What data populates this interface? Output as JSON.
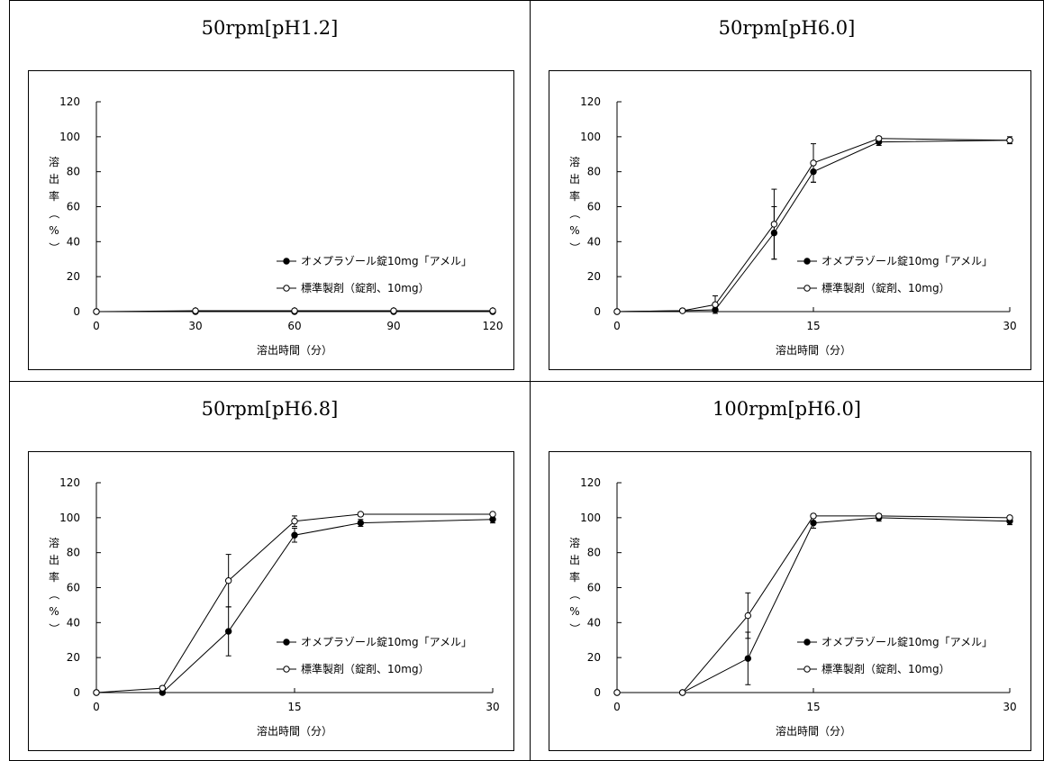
{
  "ylabel": "溶出率（％）",
  "ylabel_chars": [
    "溶",
    "出",
    "率",
    "（",
    "%",
    "）"
  ],
  "xlabel": "溶出時間（分）",
  "chart_data": [
    {
      "type": "line",
      "title": "50rpm[pH1.2]",
      "xlabel": "溶出時間（分）",
      "ylabel": "溶出率（％）",
      "xlim": [
        0,
        120
      ],
      "ylim": [
        0,
        120
      ],
      "xticks": [
        0,
        30,
        60,
        90,
        120
      ],
      "yticks": [
        0,
        20,
        40,
        60,
        80,
        100,
        120
      ],
      "grid": false,
      "legend_position": "right",
      "series": [
        {
          "name": "オメプラゾール錠10mg「アメル」",
          "marker": "filled-circle",
          "x": [
            0,
            30,
            60,
            90,
            120
          ],
          "y": [
            0,
            0,
            0,
            0,
            0
          ],
          "err": [
            0,
            0,
            0,
            0,
            0
          ]
        },
        {
          "name": "標準製剤（錠剤、10mg）",
          "marker": "open-circle",
          "x": [
            0,
            30,
            60,
            90,
            120
          ],
          "y": [
            0,
            0.5,
            0.5,
            0.5,
            0.5
          ],
          "err": [
            0,
            0,
            0,
            0,
            0
          ]
        }
      ]
    },
    {
      "type": "line",
      "title": "50rpm[pH6.0]",
      "xlabel": "溶出時間（分）",
      "ylabel": "溶出率（％）",
      "xlim": [
        0,
        30
      ],
      "ylim": [
        0,
        120
      ],
      "xticks": [
        0,
        15,
        30
      ],
      "yticks": [
        0,
        20,
        40,
        60,
        80,
        100,
        120
      ],
      "grid": false,
      "legend_position": "right",
      "series": [
        {
          "name": "オメプラゾール錠10mg「アメル」",
          "marker": "filled-circle",
          "x": [
            0,
            5,
            7.5,
            12,
            15,
            20,
            30
          ],
          "y": [
            0,
            0.5,
            1,
            45,
            80,
            97,
            98
          ],
          "err": [
            0,
            0,
            1,
            15,
            6,
            2,
            1
          ]
        },
        {
          "name": "標準製剤（錠剤、10mg）",
          "marker": "open-circle",
          "x": [
            0,
            5,
            7.5,
            12,
            15,
            20,
            30
          ],
          "y": [
            0,
            0.5,
            4,
            50,
            85,
            99,
            98
          ],
          "err": [
            0,
            0,
            5,
            20,
            11,
            1,
            2
          ]
        }
      ]
    },
    {
      "type": "line",
      "title": "50rpm[pH6.8]",
      "xlabel": "溶出時間（分）",
      "ylabel": "溶出率（％）",
      "xlim": [
        0,
        30
      ],
      "ylim": [
        0,
        120
      ],
      "xticks": [
        0,
        15,
        30
      ],
      "yticks": [
        0,
        20,
        40,
        60,
        80,
        100,
        120
      ],
      "grid": false,
      "legend_position": "right",
      "series": [
        {
          "name": "オメプラゾール錠10mg「アメル」",
          "marker": "filled-circle",
          "x": [
            0,
            5,
            10,
            15,
            20,
            30
          ],
          "y": [
            0,
            0,
            35,
            90,
            97,
            99
          ],
          "err": [
            0,
            1,
            14,
            4,
            2,
            2
          ]
        },
        {
          "name": "標準製剤（錠剤、10mg）",
          "marker": "open-circle",
          "x": [
            0,
            5,
            10,
            15,
            20,
            30
          ],
          "y": [
            0,
            2.5,
            64,
            98,
            102,
            102
          ],
          "err": [
            0,
            1,
            15,
            3,
            1,
            1
          ]
        }
      ]
    },
    {
      "type": "line",
      "title": "100rpm[pH6.0]",
      "xlabel": "溶出時間（分）",
      "ylabel": "溶出率（％）",
      "xlim": [
        0,
        30
      ],
      "ylim": [
        0,
        120
      ],
      "xticks": [
        0,
        15,
        30
      ],
      "yticks": [
        0,
        20,
        40,
        60,
        80,
        100,
        120
      ],
      "grid": false,
      "legend_position": "right",
      "series": [
        {
          "name": "オメプラゾール錠10mg「アメル」",
          "marker": "filled-circle",
          "x": [
            0,
            5,
            10,
            15,
            20,
            30
          ],
          "y": [
            0,
            0,
            19.5,
            97,
            100,
            98
          ],
          "err": [
            0,
            0,
            15,
            3,
            2,
            2
          ]
        },
        {
          "name": "標準製剤（錠剤、10mg）",
          "marker": "open-circle",
          "x": [
            0,
            5,
            10,
            15,
            20,
            30
          ],
          "y": [
            0,
            0,
            44,
            101,
            101,
            100
          ],
          "err": [
            0,
            0,
            13,
            1,
            1,
            1
          ]
        }
      ]
    }
  ]
}
